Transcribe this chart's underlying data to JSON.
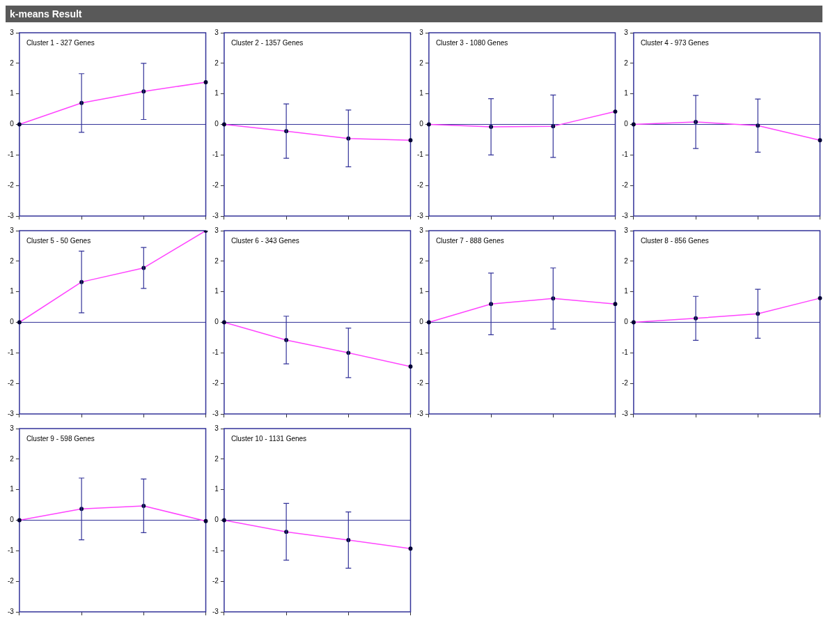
{
  "chart_data": [
    {
      "type": "other",
      "title": "k-means Result"
    },
    {
      "type": "line",
      "title": "Cluster 1 - 327 Genes",
      "categories": [
        null,
        null,
        null,
        null
      ],
      "values": [
        0,
        0.7,
        1.08,
        1.38
      ],
      "errors": [
        null,
        0.96,
        0.92,
        null
      ],
      "color": "#ff44ff",
      "marker": "circle",
      "ylim": [
        -3,
        3
      ],
      "yticks": [
        -3,
        -2,
        -1,
        0,
        1,
        2,
        3
      ],
      "ref_lines": [
        {
          "axis": "y",
          "value": 0,
          "color": "#333399"
        }
      ],
      "tick_labels": "y"
    },
    {
      "type": "line",
      "title": "Cluster 2 - 1357 Genes",
      "categories": [
        null,
        null,
        null,
        null
      ],
      "values": [
        0,
        -0.22,
        -0.46,
        -0.52
      ],
      "errors": [
        null,
        0.89,
        0.93,
        null
      ],
      "color": "#ff44ff",
      "marker": "circle",
      "ylim": [
        -3,
        3
      ],
      "yticks": [
        -3,
        -2,
        -1,
        0,
        1,
        2,
        3
      ],
      "ref_lines": [
        {
          "axis": "y",
          "value": 0,
          "color": "#333399"
        }
      ],
      "tick_labels": "y"
    },
    {
      "type": "line",
      "title": "Cluster 3 - 1080 Genes",
      "categories": [
        null,
        null,
        null,
        null
      ],
      "values": [
        0,
        -0.08,
        -0.06,
        0.42
      ],
      "errors": [
        null,
        0.92,
        1.02,
        null
      ],
      "color": "#ff44ff",
      "marker": "circle",
      "ylim": [
        -3,
        3
      ],
      "yticks": [
        -3,
        -2,
        -1,
        0,
        1,
        2,
        3
      ],
      "ref_lines": [
        {
          "axis": "y",
          "value": 0,
          "color": "#333399"
        }
      ],
      "tick_labels": "y"
    },
    {
      "type": "line",
      "title": "Cluster 4 - 973 Genes",
      "categories": [
        null,
        null,
        null,
        null
      ],
      "values": [
        0,
        0.08,
        -0.04,
        -0.52
      ],
      "errors": [
        null,
        0.87,
        0.87,
        null
      ],
      "color": "#ff44ff",
      "marker": "circle",
      "ylim": [
        -3,
        3
      ],
      "yticks": [
        -3,
        -2,
        -1,
        0,
        1,
        2,
        3
      ],
      "ref_lines": [
        {
          "axis": "y",
          "value": 0,
          "color": "#333399"
        }
      ],
      "tick_labels": "y"
    },
    {
      "type": "line",
      "title": "Cluster 5 - 50 Genes",
      "categories": [
        null,
        null,
        null,
        null
      ],
      "values": [
        0,
        1.32,
        1.78,
        3.0
      ],
      "errors": [
        null,
        1.01,
        0.67,
        null
      ],
      "color": "#ff44ff",
      "marker": "circle",
      "ylim": [
        -3,
        3
      ],
      "yticks": [
        -3,
        -2,
        -1,
        0,
        1,
        2,
        3
      ],
      "ref_lines": [
        {
          "axis": "y",
          "value": 0,
          "color": "#333399"
        }
      ],
      "tick_labels": "y"
    },
    {
      "type": "line",
      "title": "Cluster 6 - 343 Genes",
      "categories": [
        null,
        null,
        null,
        null
      ],
      "values": [
        0,
        -0.58,
        -1.0,
        -1.45
      ],
      "errors": [
        null,
        0.78,
        0.81,
        null
      ],
      "color": "#ff44ff",
      "marker": "circle",
      "ylim": [
        -3,
        3
      ],
      "yticks": [
        -3,
        -2,
        -1,
        0,
        1,
        2,
        3
      ],
      "ref_lines": [
        {
          "axis": "y",
          "value": 0,
          "color": "#333399"
        }
      ],
      "tick_labels": "y"
    },
    {
      "type": "line",
      "title": "Cluster 7 - 888 Genes",
      "categories": [
        null,
        null,
        null,
        null
      ],
      "values": [
        0,
        0.6,
        0.78,
        0.6
      ],
      "errors": [
        null,
        1.01,
        1.0,
        null
      ],
      "color": "#ff44ff",
      "marker": "circle",
      "ylim": [
        -3,
        3
      ],
      "yticks": [
        -3,
        -2,
        -1,
        0,
        1,
        2,
        3
      ],
      "ref_lines": [
        {
          "axis": "y",
          "value": 0,
          "color": "#333399"
        }
      ],
      "tick_labels": "y"
    },
    {
      "type": "line",
      "title": "Cluster 8 - 856 Genes",
      "categories": [
        null,
        null,
        null,
        null
      ],
      "values": [
        0,
        0.13,
        0.28,
        0.79
      ],
      "errors": [
        null,
        0.72,
        0.8,
        null
      ],
      "color": "#ff44ff",
      "marker": "circle",
      "ylim": [
        -3,
        3
      ],
      "yticks": [
        -3,
        -2,
        -1,
        0,
        1,
        2,
        3
      ],
      "ref_lines": [
        {
          "axis": "y",
          "value": 0,
          "color": "#333399"
        }
      ],
      "tick_labels": "y"
    },
    {
      "type": "line",
      "title": "Cluster 9 - 598 Genes",
      "categories": [
        null,
        null,
        null,
        null
      ],
      "values": [
        0,
        0.37,
        0.47,
        -0.03
      ],
      "errors": [
        null,
        1.01,
        0.88,
        null
      ],
      "color": "#ff44ff",
      "marker": "circle",
      "ylim": [
        -3,
        3
      ],
      "yticks": [
        -3,
        -2,
        -1,
        0,
        1,
        2,
        3
      ],
      "ref_lines": [
        {
          "axis": "y",
          "value": 0,
          "color": "#333399"
        }
      ],
      "tick_labels": "y"
    },
    {
      "type": "line",
      "title": "Cluster 10 - 1131 Genes",
      "categories": [
        null,
        null,
        null,
        null
      ],
      "values": [
        0,
        -0.38,
        -0.65,
        -0.93
      ],
      "errors": [
        null,
        0.93,
        0.92,
        null
      ],
      "color": "#ff44ff",
      "marker": "circle",
      "ylim": [
        -3,
        3
      ],
      "yticks": [
        -3,
        -2,
        -1,
        0,
        1,
        2,
        3
      ],
      "ref_lines": [
        {
          "axis": "y",
          "value": 0,
          "color": "#333399"
        }
      ],
      "tick_labels": "y"
    }
  ]
}
